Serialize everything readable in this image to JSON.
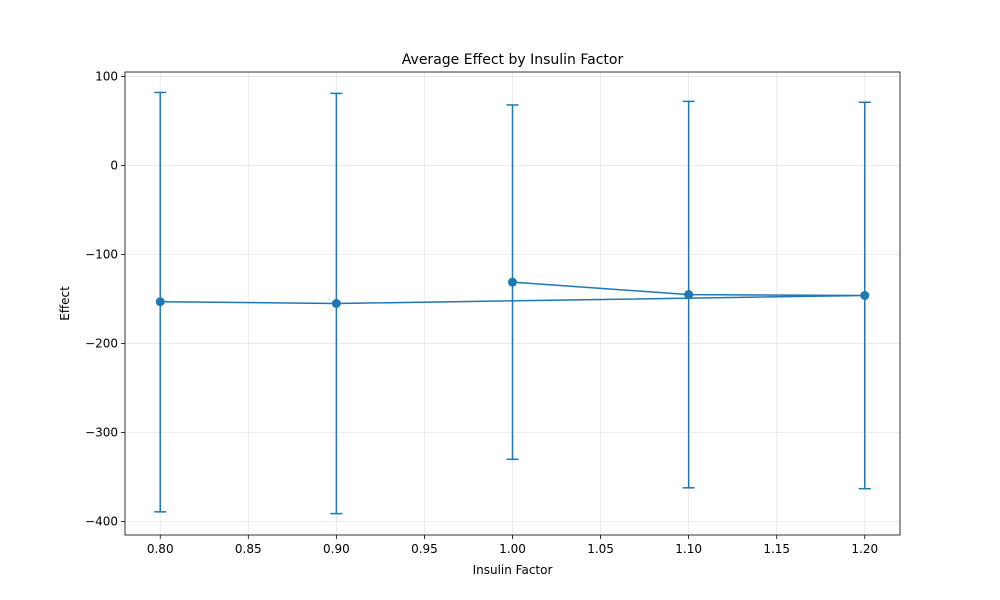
{
  "chart_data": {
    "type": "line",
    "title": "Average Effect by Insulin Factor",
    "xlabel": "Insulin Factor",
    "ylabel": "Effect",
    "xlim": [
      0.78,
      1.22
    ],
    "ylim": [
      -415,
      105
    ],
    "xticks": [
      0.8,
      0.85,
      0.9,
      0.95,
      1.0,
      1.05,
      1.1,
      1.15,
      1.2
    ],
    "xtick_labels": [
      "0.80",
      "0.85",
      "0.90",
      "0.95",
      "1.00",
      "1.05",
      "1.10",
      "1.15",
      "1.20"
    ],
    "yticks": [
      100,
      0,
      -100,
      -200,
      -300,
      -400
    ],
    "ytick_labels": [
      "100",
      "0",
      "−100",
      "−200",
      "−300",
      "−400"
    ],
    "grid": true,
    "series": [
      {
        "color": "#1f77b4",
        "marker": "circle",
        "points": [
          {
            "x": 0.8,
            "y": -153,
            "err_low": -389,
            "err_high": 82
          },
          {
            "x": 0.9,
            "y": -155,
            "err_low": -391,
            "err_high": 81
          },
          {
            "x": 1.2,
            "y": -146,
            "err_low": -363,
            "err_high": 71
          },
          {
            "x": 1.1,
            "y": -145,
            "err_low": -362,
            "err_high": 72
          },
          {
            "x": 1.0,
            "y": -131,
            "err_low": -330,
            "err_high": 68
          }
        ]
      }
    ]
  }
}
